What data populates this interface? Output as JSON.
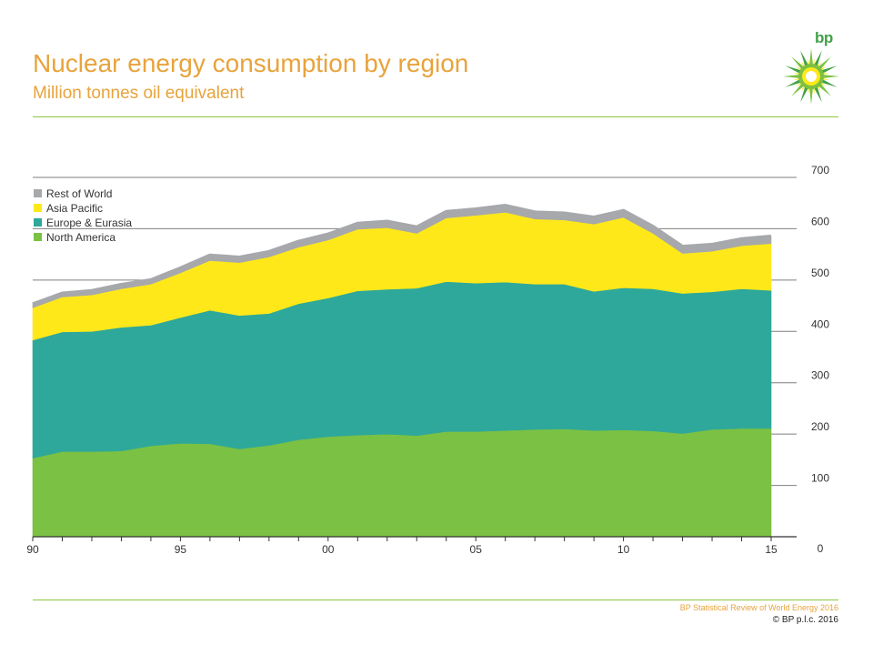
{
  "header": {
    "title": "Nuclear energy consumption by region",
    "subtitle": "Million tonnes oil equivalent",
    "logo_text": "bp"
  },
  "footer": {
    "source": "BP Statistical Review of World Energy 2016",
    "copyright": "© BP p.l.c. 2016"
  },
  "colors": {
    "title": "#e8a33b",
    "rule": "#8cc63f",
    "rest_of_world": "#a6a8ab",
    "asia_pacific": "#ffe81a",
    "europe_eurasia": "#2ea89a",
    "north_america": "#7bc143",
    "gridline": "#7f7f7f"
  },
  "chart_data": {
    "type": "area",
    "stacked": true,
    "title": "Nuclear energy consumption by region",
    "subtitle": "Million tonnes oil equivalent",
    "xlabel": "",
    "ylabel": "",
    "x": [
      1990,
      1991,
      1992,
      1993,
      1994,
      1995,
      1996,
      1997,
      1998,
      1999,
      2000,
      2001,
      2002,
      2003,
      2004,
      2005,
      2006,
      2007,
      2008,
      2009,
      2010,
      2011,
      2012,
      2013,
      2014,
      2015
    ],
    "x_tick_labels": [
      {
        "x": 1990,
        "label": "90"
      },
      {
        "x": 1995,
        "label": "95"
      },
      {
        "x": 2000,
        "label": "00"
      },
      {
        "x": 2005,
        "label": "05"
      },
      {
        "x": 2010,
        "label": "10"
      },
      {
        "x": 2015,
        "label": "15"
      }
    ],
    "y_ticks": [
      0,
      100,
      200,
      300,
      400,
      500,
      600,
      700
    ],
    "ylim": [
      0,
      720
    ],
    "y_axis_side": "right",
    "grid": true,
    "legend_position": "top-left",
    "series": [
      {
        "name": "North America",
        "color": "#7bc143",
        "values": [
          153,
          166,
          166,
          167,
          177,
          182,
          181,
          171,
          178,
          189,
          195,
          198,
          200,
          197,
          205,
          205,
          207,
          209,
          210,
          207,
          208,
          206,
          201,
          209,
          211,
          211
        ]
      },
      {
        "name": "Europe & Eurasia",
        "color": "#2ea89a",
        "values": [
          230,
          233,
          234,
          241,
          235,
          245,
          260,
          260,
          257,
          265,
          270,
          281,
          282,
          287,
          292,
          289,
          289,
          283,
          282,
          271,
          277,
          277,
          273,
          268,
          272,
          269
        ]
      },
      {
        "name": "Asia Pacific",
        "color": "#ffe81a",
        "values": [
          63,
          68,
          71,
          75,
          80,
          87,
          97,
          103,
          110,
          110,
          113,
          120,
          120,
          107,
          124,
          132,
          136,
          127,
          125,
          131,
          137,
          108,
          78,
          79,
          84,
          91
        ]
      },
      {
        "name": "Rest of World",
        "color": "#a6a8ab",
        "values": [
          7,
          7,
          8,
          8,
          8,
          9,
          10,
          10,
          10,
          11,
          11,
          11,
          12,
          12,
          12,
          12,
          13,
          13,
          13,
          13,
          13,
          13,
          13,
          13,
          13,
          14
        ]
      }
    ]
  }
}
